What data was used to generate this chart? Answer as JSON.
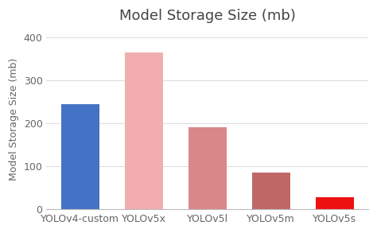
{
  "categories": [
    "YOLOv4-custom",
    "YOLOv5x",
    "YOLOv5l",
    "YOLOv5m",
    "YOLOv5s"
  ],
  "values": [
    245,
    365,
    192,
    85,
    28
  ],
  "bar_colors": [
    "#4472C4",
    "#F2AEAE",
    "#D98888",
    "#C06868",
    "#EE1111"
  ],
  "title": "Model Storage Size (mb)",
  "ylabel": "Model Storage Size (mb)",
  "ylim": [
    0,
    420
  ],
  "yticks": [
    0,
    100,
    200,
    300,
    400
  ],
  "background_color": "#FFFFFF",
  "title_fontsize": 13,
  "label_fontsize": 9,
  "tick_fontsize": 9,
  "bar_width": 0.6
}
